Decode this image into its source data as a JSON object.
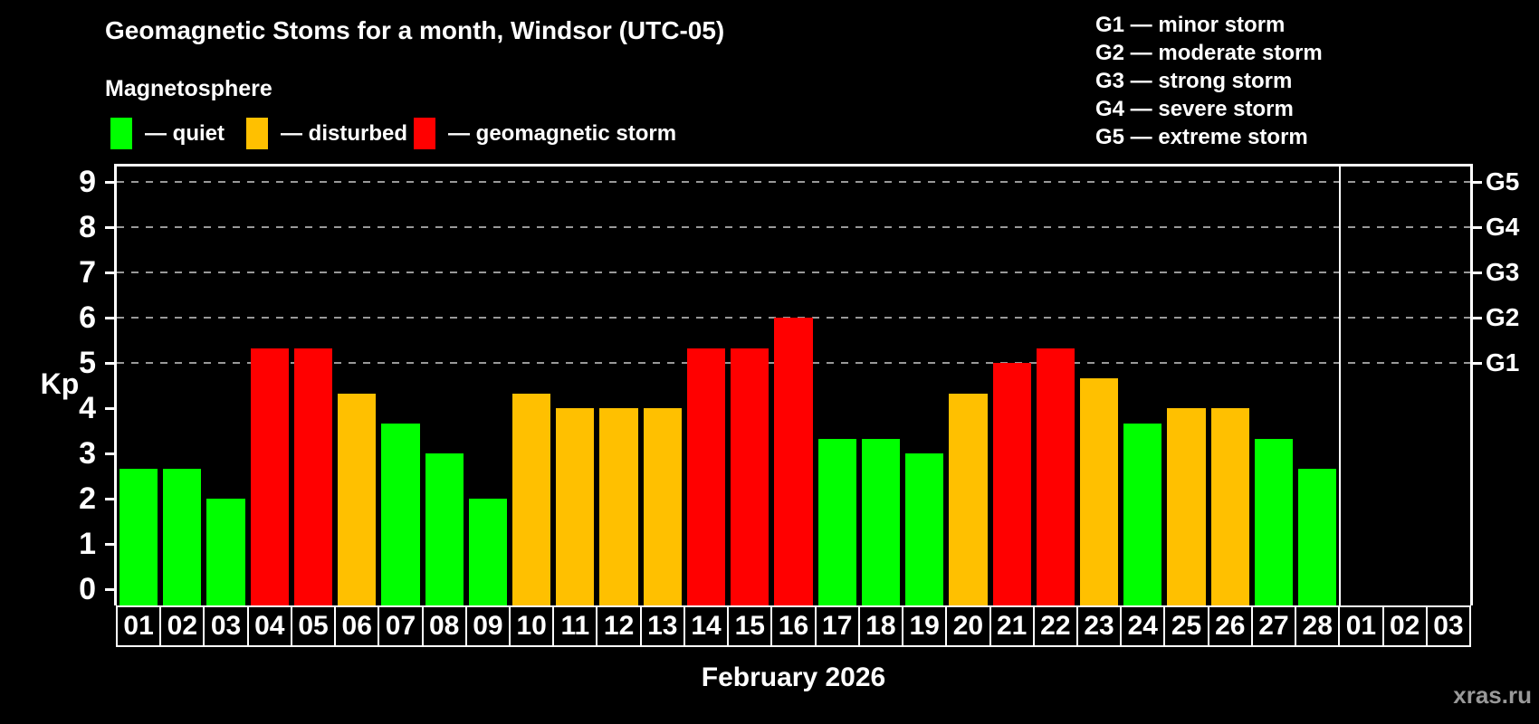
{
  "header": {
    "title": "Geomagnetic Stoms for a month, Windsor (UTC-05)",
    "subtitle": "Magnetosphere"
  },
  "legend": {
    "items": [
      {
        "key": "quiet",
        "label": "— quiet",
        "color": "#00ff00",
        "x": 0
      },
      {
        "key": "disturbed",
        "label": "— disturbed",
        "color": "#ffc000",
        "x": 150
      },
      {
        "key": "storm",
        "label": "— geomagnetic storm",
        "color": "#ff0000",
        "x": 335
      }
    ]
  },
  "storm_scale_legend": {
    "items": [
      "G1 — minor storm",
      "G2 — moderate storm",
      "G3 — strong storm",
      "G4 — severe storm",
      "G5 — extreme storm"
    ]
  },
  "chart_data": {
    "type": "bar",
    "title": "Geomagnetic Stoms for a month, Windsor (UTC-05)",
    "xlabel": "February 2026",
    "ylabel": "Kp",
    "ylim": [
      -0.36,
      9.36
    ],
    "yticks": [
      0,
      1,
      2,
      3,
      4,
      5,
      6,
      7,
      8,
      9
    ],
    "gridlines_at": [
      5,
      6,
      7,
      8,
      9
    ],
    "grid": "dashed",
    "legend_position": "top-left",
    "status_colors": {
      "quiet": "#00ff00",
      "disturbed": "#ffc000",
      "storm": "#ff0000"
    },
    "right_axis": [
      {
        "label": "G1",
        "kp": 5
      },
      {
        "label": "G2",
        "kp": 6
      },
      {
        "label": "G3",
        "kp": 7
      },
      {
        "label": "G4",
        "kp": 8
      },
      {
        "label": "G5",
        "kp": 9
      }
    ],
    "month_separator_after_index": 28,
    "bars": [
      {
        "day": "01",
        "kp": 2.67,
        "status": "quiet"
      },
      {
        "day": "02",
        "kp": 2.67,
        "status": "quiet"
      },
      {
        "day": "03",
        "kp": 2.0,
        "status": "quiet"
      },
      {
        "day": "04",
        "kp": 5.33,
        "status": "storm"
      },
      {
        "day": "05",
        "kp": 5.33,
        "status": "storm"
      },
      {
        "day": "06",
        "kp": 4.33,
        "status": "disturbed"
      },
      {
        "day": "07",
        "kp": 3.67,
        "status": "quiet"
      },
      {
        "day": "08",
        "kp": 3.0,
        "status": "quiet"
      },
      {
        "day": "09",
        "kp": 2.0,
        "status": "quiet"
      },
      {
        "day": "10",
        "kp": 4.33,
        "status": "disturbed"
      },
      {
        "day": "11",
        "kp": 4.0,
        "status": "disturbed"
      },
      {
        "day": "12",
        "kp": 4.0,
        "status": "disturbed"
      },
      {
        "day": "13",
        "kp": 4.0,
        "status": "disturbed"
      },
      {
        "day": "14",
        "kp": 5.33,
        "status": "storm"
      },
      {
        "day": "15",
        "kp": 5.33,
        "status": "storm"
      },
      {
        "day": "16",
        "kp": 6.0,
        "status": "storm"
      },
      {
        "day": "17",
        "kp": 3.33,
        "status": "quiet"
      },
      {
        "day": "18",
        "kp": 3.33,
        "status": "quiet"
      },
      {
        "day": "19",
        "kp": 3.0,
        "status": "quiet"
      },
      {
        "day": "20",
        "kp": 4.33,
        "status": "disturbed"
      },
      {
        "day": "21",
        "kp": 5.0,
        "status": "storm"
      },
      {
        "day": "22",
        "kp": 5.33,
        "status": "storm"
      },
      {
        "day": "23",
        "kp": 4.67,
        "status": "disturbed"
      },
      {
        "day": "24",
        "kp": 3.67,
        "status": "quiet"
      },
      {
        "day": "25",
        "kp": 4.0,
        "status": "disturbed"
      },
      {
        "day": "26",
        "kp": 4.0,
        "status": "disturbed"
      },
      {
        "day": "27",
        "kp": 3.33,
        "status": "quiet"
      },
      {
        "day": "28",
        "kp": 2.67,
        "status": "quiet"
      },
      {
        "day": "01",
        "kp": null,
        "status": null
      },
      {
        "day": "02",
        "kp": null,
        "status": null
      },
      {
        "day": "03",
        "kp": null,
        "status": null
      }
    ]
  },
  "footer": {
    "xaxis_title": "February 2026",
    "watermark": "xras.ru"
  }
}
